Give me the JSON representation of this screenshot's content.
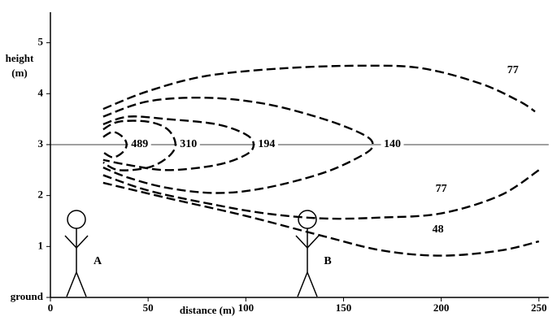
{
  "chart_data": {
    "type": "contour",
    "xlabel": "distance (m)",
    "ylabel": [
      "height",
      "(m)"
    ],
    "xlim": [
      0,
      255
    ],
    "ylim": [
      0,
      5.6
    ],
    "xticks": [
      0,
      50,
      100,
      150,
      200,
      250
    ],
    "yticks": [
      {
        "value": 0,
        "label": "ground"
      },
      1,
      2,
      3,
      4,
      5
    ],
    "hline": 3,
    "color": "#000000",
    "series": [
      {
        "level": 489,
        "x": [
          27,
          32,
          37,
          39,
          37,
          32,
          27
        ],
        "y": [
          3.15,
          3.25,
          3.15,
          3.0,
          2.85,
          2.75,
          2.85
        ]
      },
      {
        "level": 310,
        "x": [
          27,
          35,
          50,
          60,
          64,
          60,
          50,
          35,
          27
        ],
        "y": [
          3.3,
          3.45,
          3.45,
          3.3,
          3.0,
          2.75,
          2.55,
          2.5,
          2.65
        ]
      },
      {
        "level": 194,
        "x": [
          27,
          40,
          60,
          85,
          100,
          104,
          100,
          85,
          60,
          40,
          27
        ],
        "y": [
          3.4,
          3.55,
          3.5,
          3.4,
          3.2,
          3.0,
          2.8,
          2.6,
          2.5,
          2.6,
          2.7
        ]
      },
      {
        "level": 140,
        "x": [
          27,
          50,
          80,
          110,
          140,
          160,
          165,
          160,
          140,
          110,
          85,
          60,
          40,
          27
        ],
        "y": [
          3.55,
          3.85,
          3.92,
          3.8,
          3.5,
          3.2,
          3.0,
          2.8,
          2.45,
          2.15,
          2.05,
          2.15,
          2.35,
          2.55
        ]
      },
      {
        "level": 77,
        "x": [
          27,
          50,
          80,
          120,
          160,
          190,
          220,
          240,
          248
        ],
        "y": [
          3.7,
          4.05,
          4.35,
          4.5,
          4.55,
          4.5,
          4.2,
          3.85,
          3.65
        ]
      },
      {
        "level": 77,
        "x": [
          27,
          50,
          80,
          110,
          140,
          170,
          200,
          230,
          250
        ],
        "y": [
          2.4,
          2.1,
          1.85,
          1.65,
          1.55,
          1.57,
          1.65,
          2.0,
          2.5
        ]
      },
      {
        "level": 48,
        "x": [
          27,
          60,
          100,
          140,
          170,
          200,
          230,
          250
        ],
        "y": [
          2.25,
          1.95,
          1.6,
          1.2,
          0.92,
          0.82,
          0.92,
          1.1
        ]
      }
    ],
    "annotations": [
      "A",
      "B"
    ]
  }
}
